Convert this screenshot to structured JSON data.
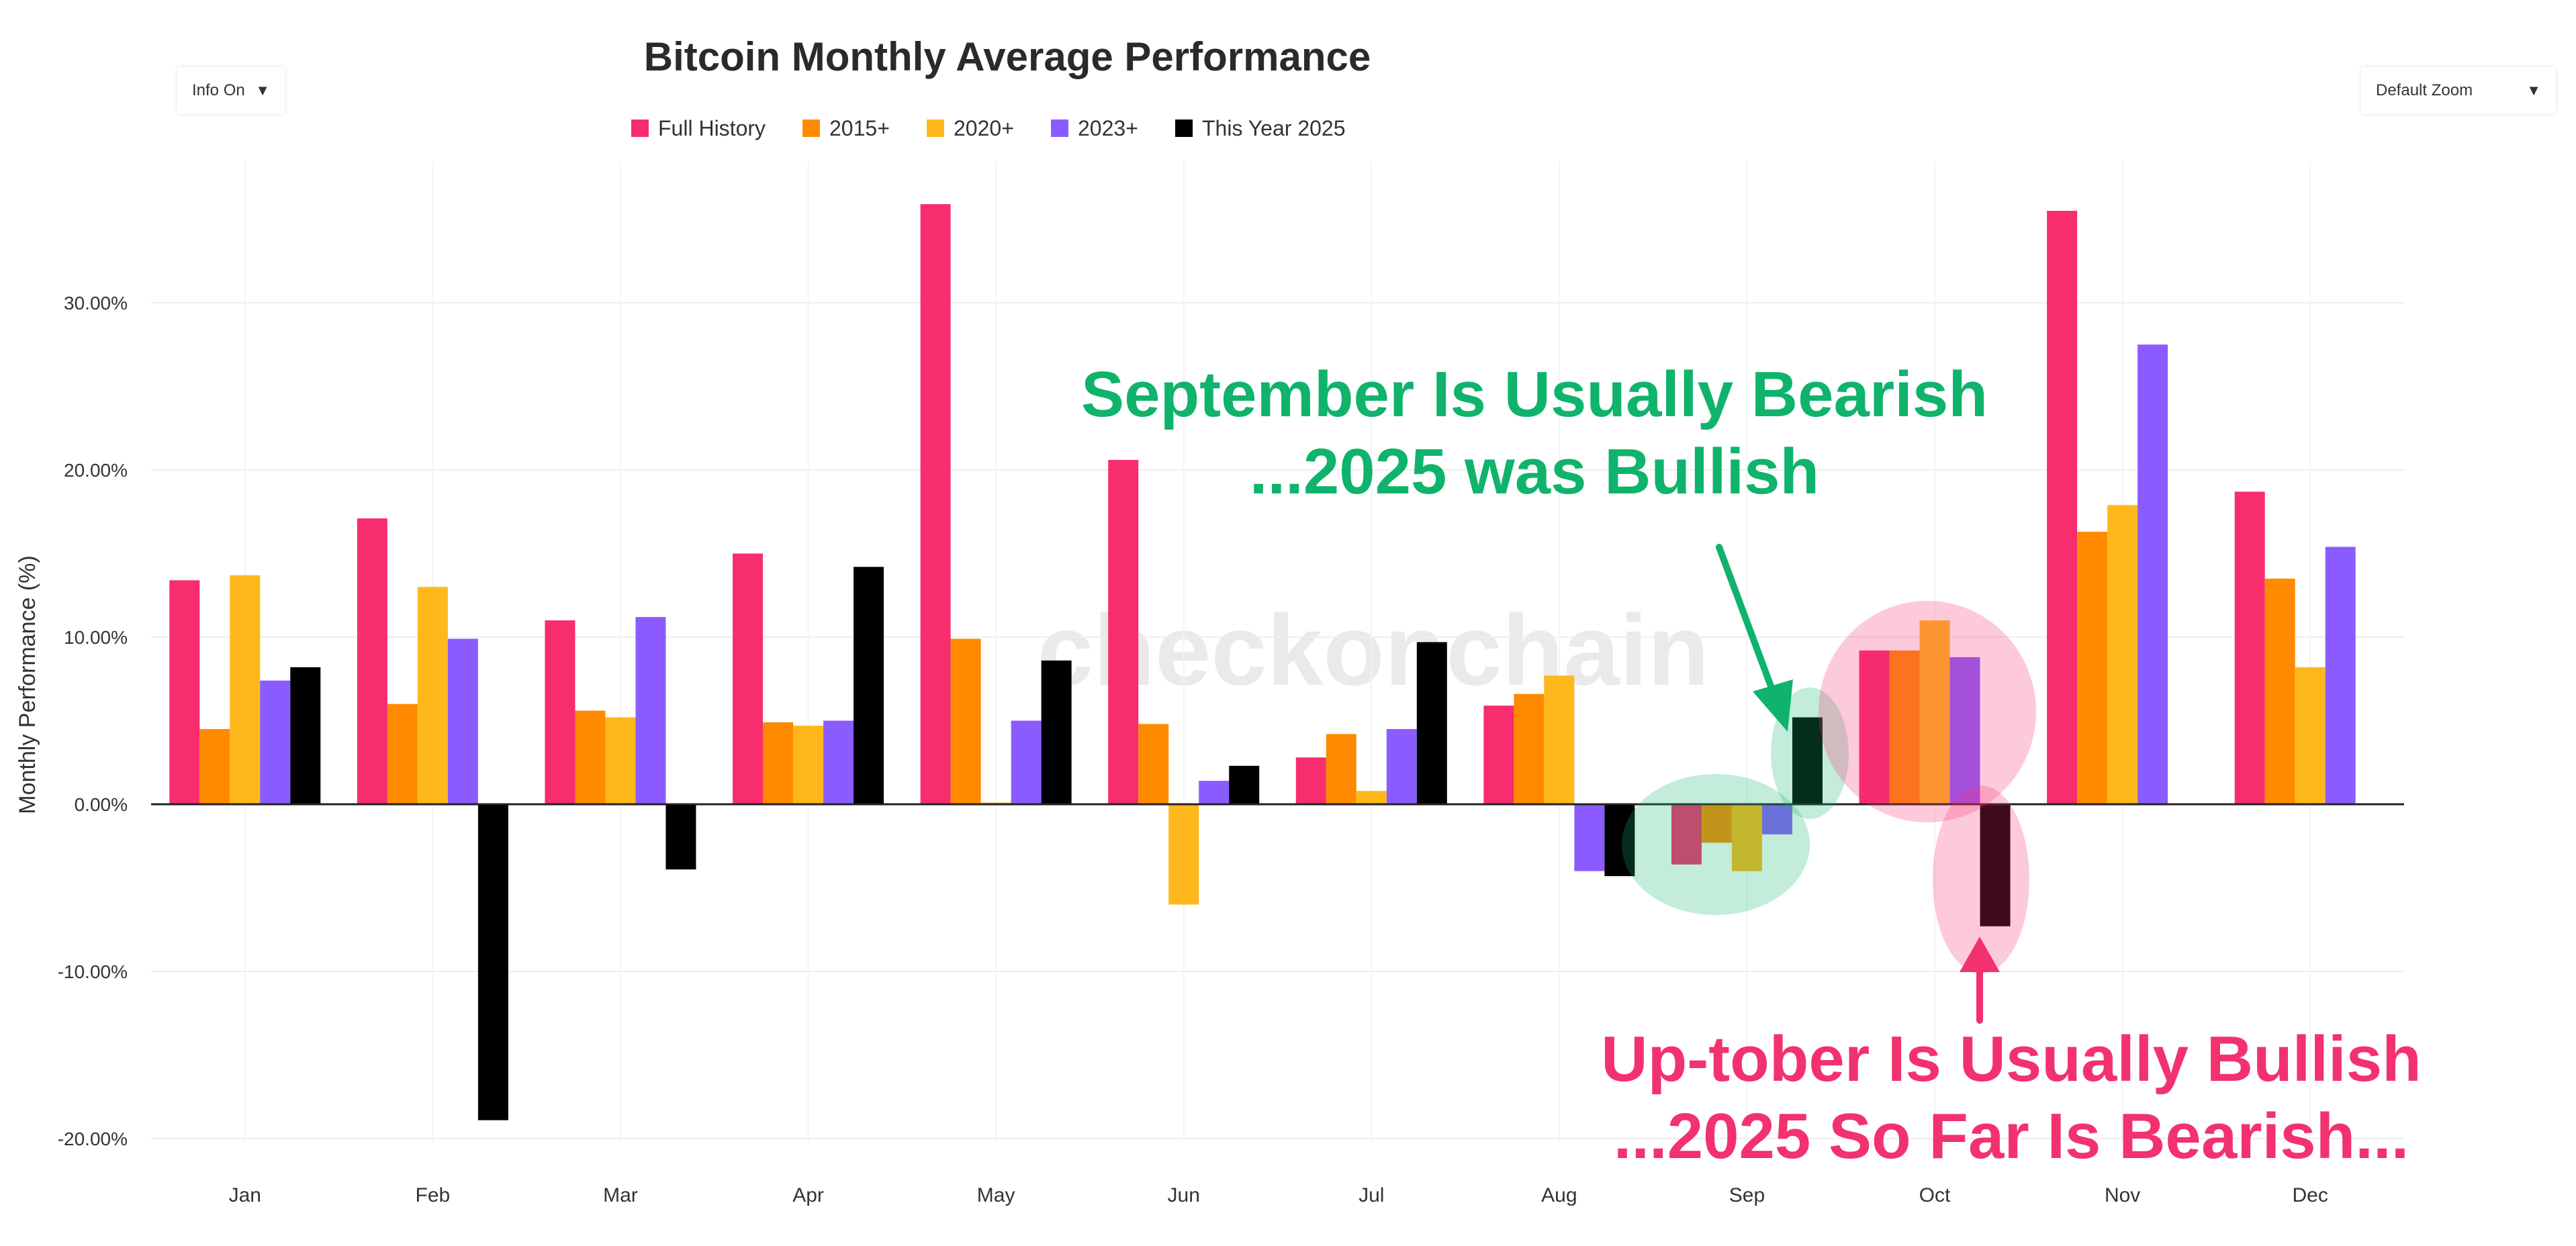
{
  "controls": {
    "info_toggle": "Info On",
    "zoom_select": "Default Zoom",
    "dropdown_glyph": "▼"
  },
  "watermark": "checkonchain",
  "annotations": {
    "september_line1": "September Is Usually Bearish",
    "september_line2": "...2025 was Bullish",
    "october_line1": "Up-tober Is Usually Bullish",
    "october_line2": "...2025 So Far Is Bearish..."
  },
  "colors": {
    "full_history": "#f72d6e",
    "since_2015": "#ff8a00",
    "since_2020": "#ffb81c",
    "since_2023": "#8a5cff",
    "this_year": "#000000",
    "annotation_green": "#0fb36c",
    "annotation_pink": "#f2326f"
  },
  "chart_data": {
    "type": "bar",
    "title": "Bitcoin Monthly Average Performance",
    "ylabel": "Monthly Performance (%)",
    "xlabel": "",
    "ylim": [
      -22,
      38
    ],
    "yticks": [
      -20,
      -10,
      0,
      10,
      20,
      30
    ],
    "ytick_labels": [
      "-20.00%",
      "-10.00%",
      "0.00%",
      "10.00%",
      "20.00%",
      "30.00%"
    ],
    "grid": true,
    "legend_position": "top-center",
    "categories": [
      "Jan",
      "Feb",
      "Mar",
      "Apr",
      "May",
      "Jun",
      "Jul",
      "Aug",
      "Sep",
      "Oct",
      "Nov",
      "Dec"
    ],
    "series": [
      {
        "name": "Full History",
        "color": "#f72d6e",
        "values": [
          13.4,
          17.1,
          11.0,
          15.0,
          35.9,
          20.6,
          2.8,
          5.9,
          -3.6,
          9.2,
          35.5,
          18.7
        ]
      },
      {
        "name": "2015+",
        "color": "#ff8a00",
        "values": [
          4.5,
          6.0,
          5.6,
          4.9,
          9.9,
          4.8,
          4.2,
          6.6,
          -2.3,
          9.2,
          16.3,
          13.5
        ]
      },
      {
        "name": "2020+",
        "color": "#ffb81c",
        "values": [
          13.7,
          13.0,
          5.2,
          4.7,
          0.1,
          -6.0,
          0.8,
          7.7,
          -4.0,
          11.0,
          17.9,
          8.2
        ]
      },
      {
        "name": "2023+",
        "color": "#8a5cff",
        "values": [
          7.4,
          9.9,
          11.2,
          5.0,
          5.0,
          1.4,
          4.5,
          -4.0,
          -1.8,
          8.8,
          27.5,
          15.4
        ]
      },
      {
        "name": "This Year 2025",
        "color": "#000000",
        "values": [
          8.2,
          -18.9,
          -3.9,
          14.2,
          8.6,
          2.3,
          9.7,
          -4.3,
          5.2,
          -7.3,
          null,
          null
        ]
      }
    ]
  }
}
